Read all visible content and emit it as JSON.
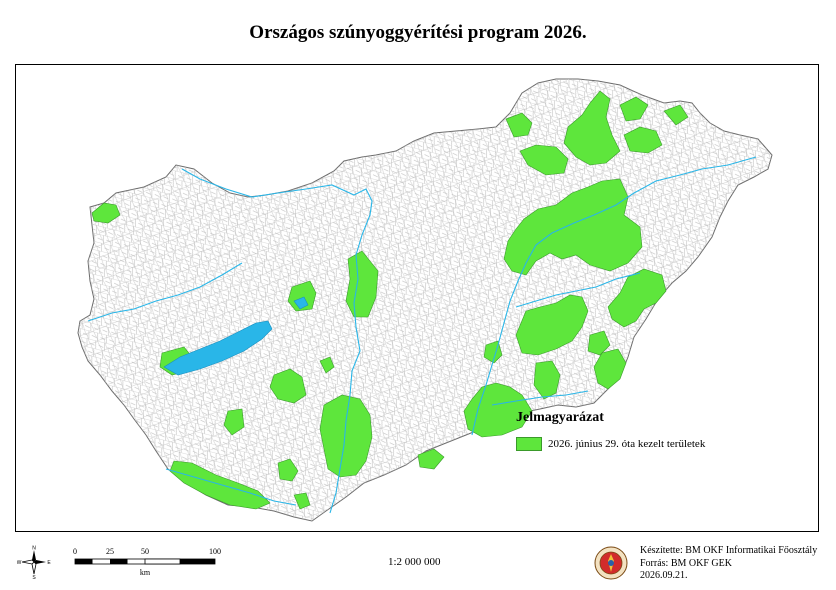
{
  "title": "Országos szúnyoggyérítési program 2026.",
  "legend": {
    "title": "Jelmagyarázat",
    "item_label": "2026. június 29. óta kezelt területek",
    "color": "#5ee63c"
  },
  "colors": {
    "treated": "#5ee63c",
    "water": "#29b6e8",
    "border": "#9a9a9a"
  },
  "north_arrow": {
    "n": "N",
    "s": "S",
    "e": "E",
    "w": "W",
    "icon": "compass-rose-icon"
  },
  "scalebar": {
    "ticks": [
      "0",
      "25",
      "50",
      "100"
    ],
    "unit": "km"
  },
  "scale_ratio": "1:2 000 000",
  "credits": {
    "made_by": "Készítette: BM OKF Informatikai Főosztály",
    "source": "Forrás: BM OKF GEK",
    "date": "2026.09.21."
  },
  "logo_icon": "bm-okf-seal-icon"
}
